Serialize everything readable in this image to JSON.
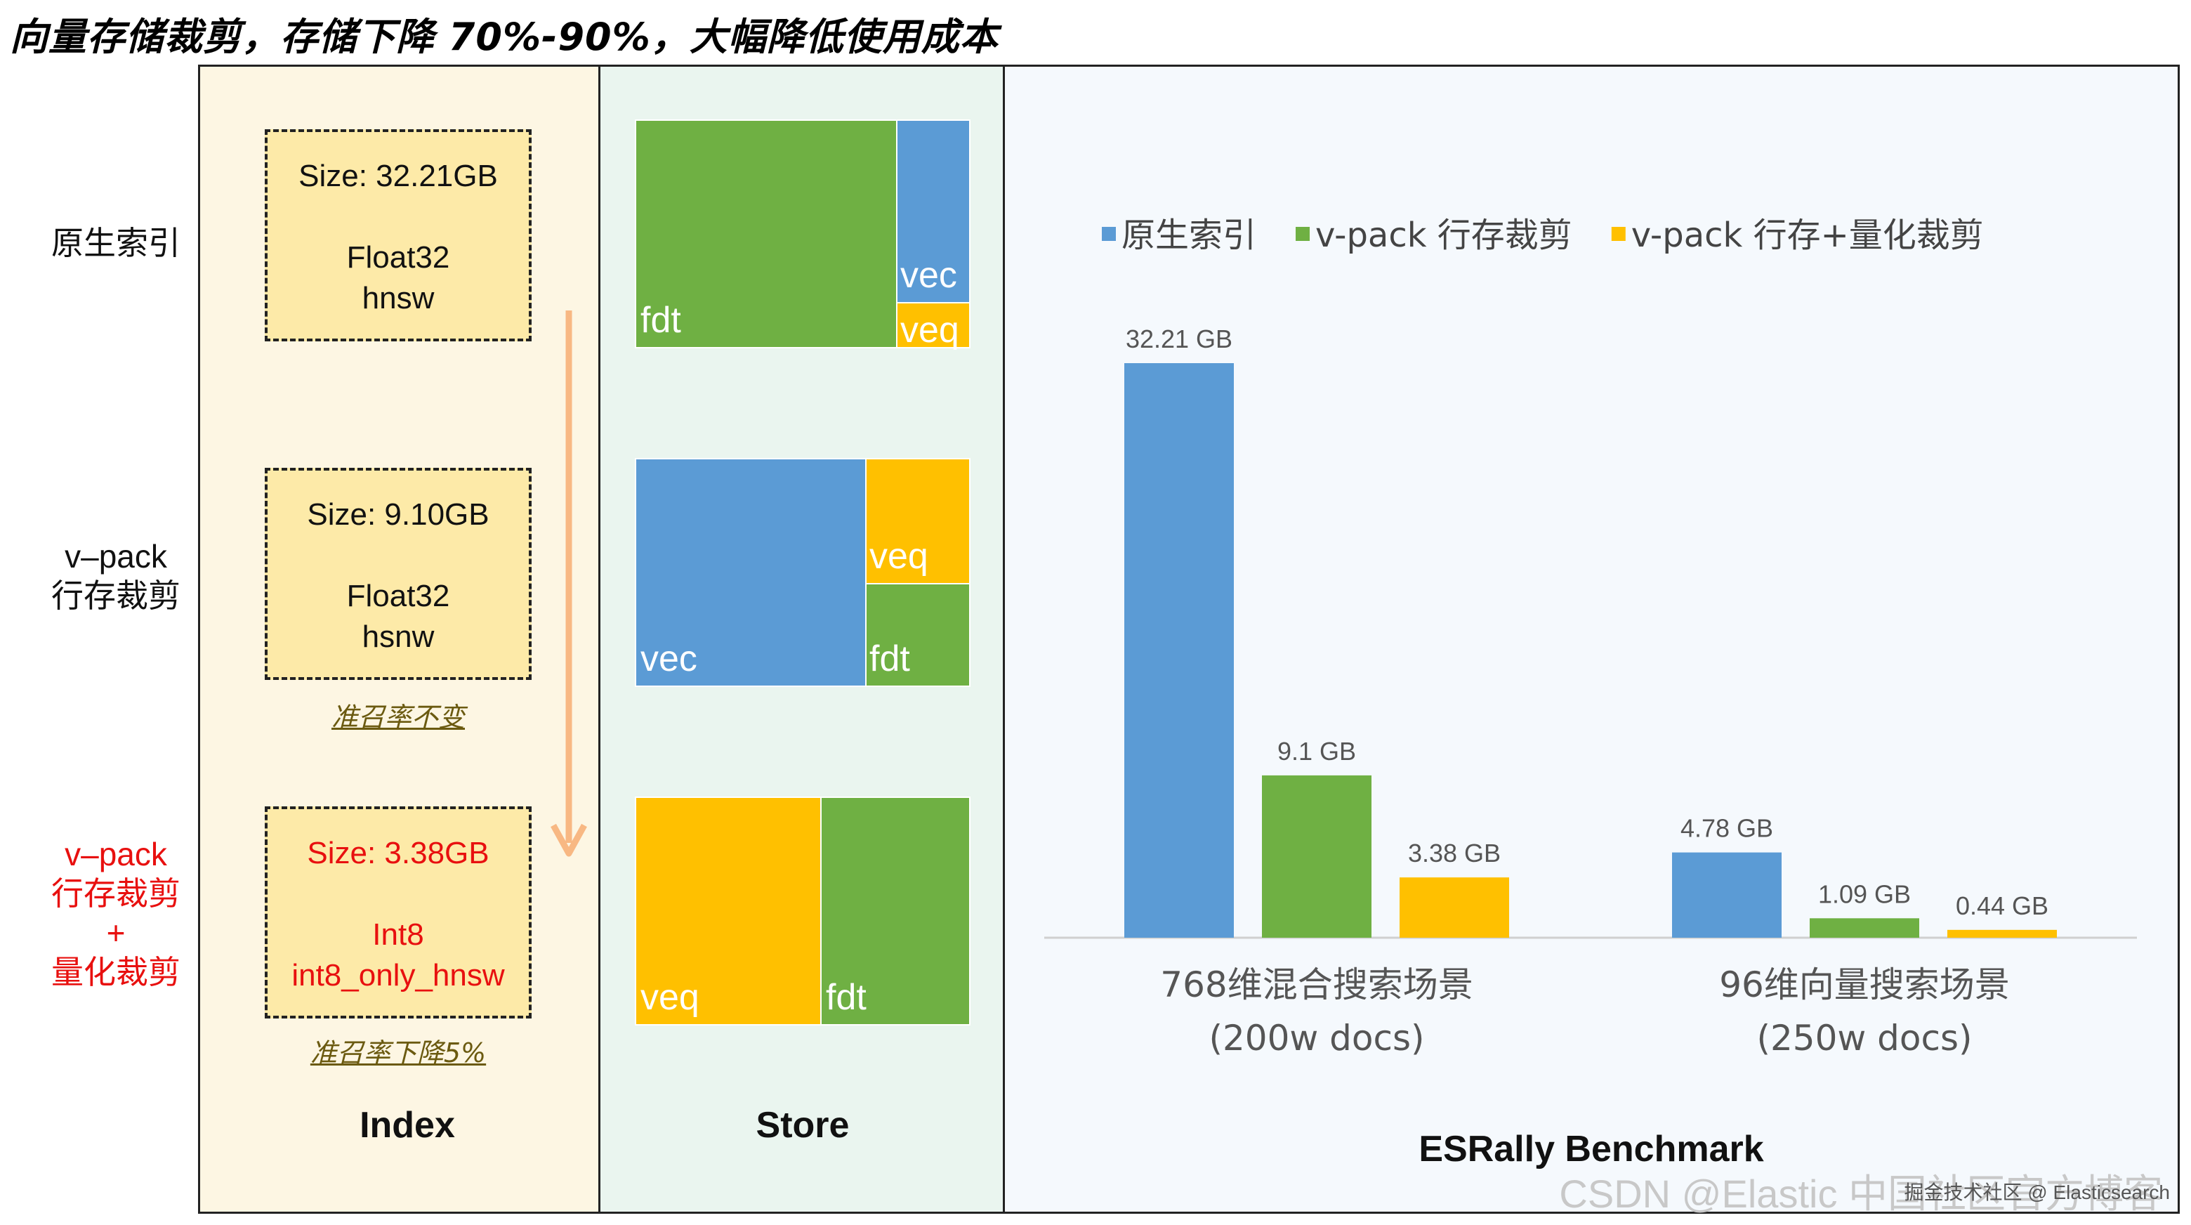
{
  "headline": "向量存储裁剪，存储下降 70%-90%，大幅降低使用成本",
  "rows": [
    {
      "label_lines": [
        "原生索引"
      ],
      "size": "Size: 32.21GB",
      "format": [
        "Float32",
        "hnsw"
      ],
      "note": ""
    },
    {
      "label_lines": [
        "v–pack",
        "行存裁剪"
      ],
      "size": "Size: 9.10GB",
      "format": [
        "Float32",
        "hsnw"
      ],
      "note": "准召率不变"
    },
    {
      "label_lines": [
        "v–pack",
        "行存裁剪",
        "+",
        "量化裁剪"
      ],
      "size": "Size: 3.38GB",
      "format": [
        "Int8",
        "int8_only_hnsw"
      ],
      "note": "准召率下降5%"
    }
  ],
  "panels": {
    "index": "Index",
    "store": "Store",
    "bench": "ESRally Benchmark"
  },
  "store_labels": {
    "fdt": "fdt",
    "vec": "vec",
    "veq": "veq"
  },
  "colors": {
    "blue": "#5b9bd5",
    "green": "#6fb043",
    "yellow": "#ffc000",
    "arrow": "#f8b883",
    "red": "#e8100f"
  },
  "chart_data": {
    "type": "bar",
    "title": "",
    "categories": [
      [
        "768维混合搜索场景",
        "(200w docs)"
      ],
      [
        "96维向量搜索场景",
        "(250w docs)"
      ]
    ],
    "series": [
      {
        "name": "原生索引",
        "color": "#5b9bd5",
        "values": [
          32.21,
          4.78
        ],
        "labels": [
          "32.21 GB",
          "4.78 GB"
        ]
      },
      {
        "name": "v-pack 行存裁剪",
        "color": "#6fb043",
        "values": [
          9.1,
          1.09
        ],
        "labels": [
          "9.1 GB",
          "1.09 GB"
        ]
      },
      {
        "name": "v-pack 行存+量化裁剪",
        "color": "#ffc000",
        "values": [
          3.38,
          0.44
        ],
        "labels": [
          "3.38 GB",
          "0.44 GB"
        ]
      }
    ],
    "unit": "GB",
    "ylim": [
      0,
      32.21
    ],
    "grid": false,
    "legend": "top"
  },
  "watermark": "CSDN @Elastic 中国社区官方博客",
  "watermark_small": "掘金技术社区 @ Elasticsearch"
}
